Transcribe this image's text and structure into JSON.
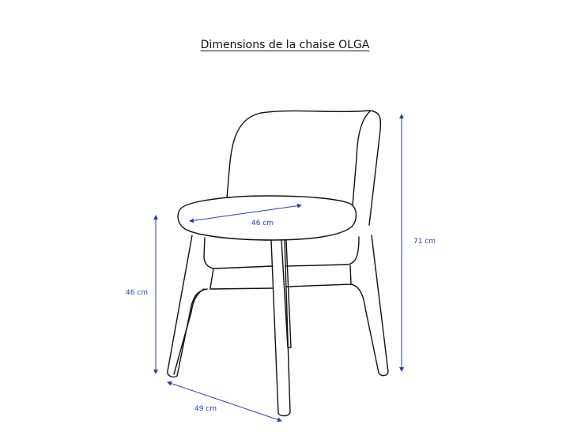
{
  "title": "Dimensions de la chaise OLGA",
  "dimensions": {
    "seat_depth": "46 cm",
    "seat_height": "46 cm",
    "total_height": "71 cm",
    "width": "49 cm"
  },
  "colors": {
    "outline": "#111111",
    "dimension": "#2a3fb0"
  }
}
